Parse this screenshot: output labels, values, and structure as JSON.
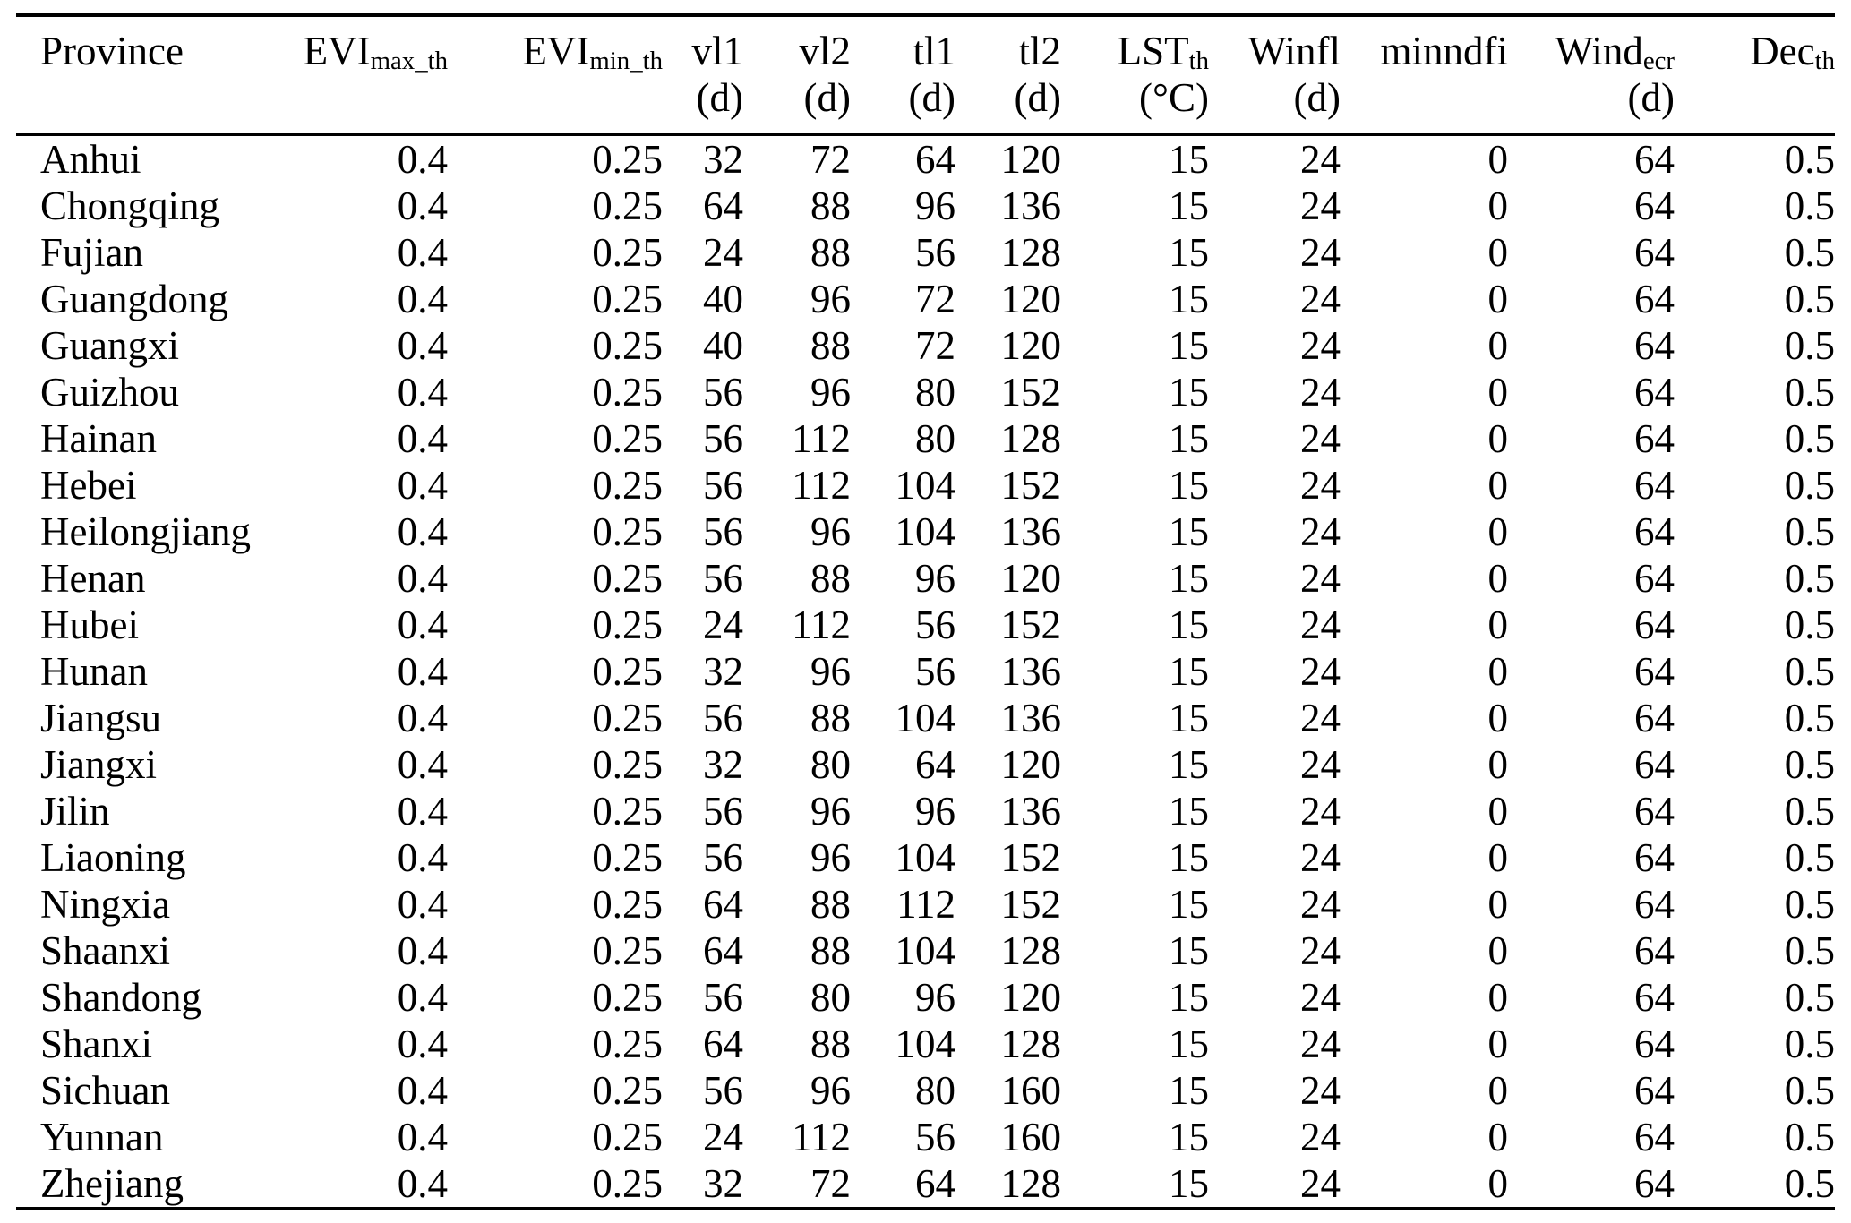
{
  "table": {
    "columns": [
      {
        "id": "province",
        "main": "Province",
        "sub": "",
        "unit": ""
      },
      {
        "id": "evi-max-th",
        "main": "EVI",
        "sub": "max_th",
        "unit": ""
      },
      {
        "id": "evi-min-th",
        "main": "EVI",
        "sub": "min_th",
        "unit": ""
      },
      {
        "id": "vl1",
        "main": "vl1",
        "sub": "",
        "unit": "(d)"
      },
      {
        "id": "vl2",
        "main": "vl2",
        "sub": "",
        "unit": "(d)"
      },
      {
        "id": "tl1",
        "main": "tl1",
        "sub": "",
        "unit": "(d)"
      },
      {
        "id": "tl2",
        "main": "tl2",
        "sub": "",
        "unit": "(d)"
      },
      {
        "id": "lst-th",
        "main": "LST",
        "sub": "th",
        "unit": "(°C)"
      },
      {
        "id": "winfl",
        "main": "Winfl",
        "sub": "",
        "unit": "(d)"
      },
      {
        "id": "minndfi",
        "main": "minndfi",
        "sub": "",
        "unit": ""
      },
      {
        "id": "wind-ecr",
        "main": "Wind",
        "sub": "ecr",
        "unit": "(d)"
      },
      {
        "id": "dec-th",
        "main": "Dec",
        "sub": "th",
        "unit": ""
      }
    ],
    "rows": [
      [
        "Anhui",
        "0.4",
        "0.25",
        "32",
        "72",
        "64",
        "120",
        "15",
        "24",
        "0",
        "64",
        "0.5"
      ],
      [
        "Chongqing",
        "0.4",
        "0.25",
        "64",
        "88",
        "96",
        "136",
        "15",
        "24",
        "0",
        "64",
        "0.5"
      ],
      [
        "Fujian",
        "0.4",
        "0.25",
        "24",
        "88",
        "56",
        "128",
        "15",
        "24",
        "0",
        "64",
        "0.5"
      ],
      [
        "Guangdong",
        "0.4",
        "0.25",
        "40",
        "96",
        "72",
        "120",
        "15",
        "24",
        "0",
        "64",
        "0.5"
      ],
      [
        "Guangxi",
        "0.4",
        "0.25",
        "40",
        "88",
        "72",
        "120",
        "15",
        "24",
        "0",
        "64",
        "0.5"
      ],
      [
        "Guizhou",
        "0.4",
        "0.25",
        "56",
        "96",
        "80",
        "152",
        "15",
        "24",
        "0",
        "64",
        "0.5"
      ],
      [
        "Hainan",
        "0.4",
        "0.25",
        "56",
        "112",
        "80",
        "128",
        "15",
        "24",
        "0",
        "64",
        "0.5"
      ],
      [
        "Hebei",
        "0.4",
        "0.25",
        "56",
        "112",
        "104",
        "152",
        "15",
        "24",
        "0",
        "64",
        "0.5"
      ],
      [
        "Heilongjiang",
        "0.4",
        "0.25",
        "56",
        "96",
        "104",
        "136",
        "15",
        "24",
        "0",
        "64",
        "0.5"
      ],
      [
        "Henan",
        "0.4",
        "0.25",
        "56",
        "88",
        "96",
        "120",
        "15",
        "24",
        "0",
        "64",
        "0.5"
      ],
      [
        "Hubei",
        "0.4",
        "0.25",
        "24",
        "112",
        "56",
        "152",
        "15",
        "24",
        "0",
        "64",
        "0.5"
      ],
      [
        "Hunan",
        "0.4",
        "0.25",
        "32",
        "96",
        "56",
        "136",
        "15",
        "24",
        "0",
        "64",
        "0.5"
      ],
      [
        "Jiangsu",
        "0.4",
        "0.25",
        "56",
        "88",
        "104",
        "136",
        "15",
        "24",
        "0",
        "64",
        "0.5"
      ],
      [
        "Jiangxi",
        "0.4",
        "0.25",
        "32",
        "80",
        "64",
        "120",
        "15",
        "24",
        "0",
        "64",
        "0.5"
      ],
      [
        "Jilin",
        "0.4",
        "0.25",
        "56",
        "96",
        "96",
        "136",
        "15",
        "24",
        "0",
        "64",
        "0.5"
      ],
      [
        "Liaoning",
        "0.4",
        "0.25",
        "56",
        "96",
        "104",
        "152",
        "15",
        "24",
        "0",
        "64",
        "0.5"
      ],
      [
        "Ningxia",
        "0.4",
        "0.25",
        "64",
        "88",
        "112",
        "152",
        "15",
        "24",
        "0",
        "64",
        "0.5"
      ],
      [
        "Shaanxi",
        "0.4",
        "0.25",
        "64",
        "88",
        "104",
        "128",
        "15",
        "24",
        "0",
        "64",
        "0.5"
      ],
      [
        "Shandong",
        "0.4",
        "0.25",
        "56",
        "80",
        "96",
        "120",
        "15",
        "24",
        "0",
        "64",
        "0.5"
      ],
      [
        "Shanxi",
        "0.4",
        "0.25",
        "64",
        "88",
        "104",
        "128",
        "15",
        "24",
        "0",
        "64",
        "0.5"
      ],
      [
        "Sichuan",
        "0.4",
        "0.25",
        "56",
        "96",
        "80",
        "160",
        "15",
        "24",
        "0",
        "64",
        "0.5"
      ],
      [
        "Yunnan",
        "0.4",
        "0.25",
        "24",
        "112",
        "56",
        "160",
        "15",
        "24",
        "0",
        "64",
        "0.5"
      ],
      [
        "Zhejiang",
        "0.4",
        "0.25",
        "32",
        "72",
        "64",
        "128",
        "15",
        "24",
        "0",
        "64",
        "0.5"
      ]
    ]
  }
}
